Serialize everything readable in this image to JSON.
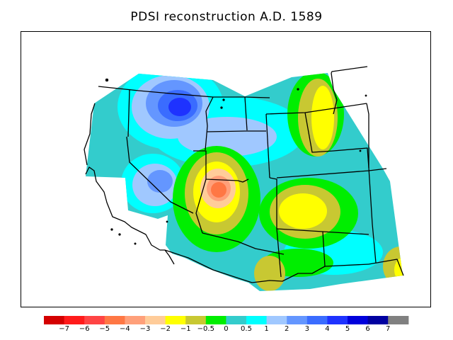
{
  "title": "PDSI reconstruction A.D. 1589",
  "legend": {
    "colors": [
      "#d40000",
      "#ff1a1a",
      "#ff4444",
      "#ff7744",
      "#ffa07a",
      "#ffcc99",
      "#ffff00",
      "#c8c832",
      "#00ee00",
      "#33cccc",
      "#00ffff",
      "#a0c8ff",
      "#6496ff",
      "#3a6cff",
      "#1e32ff",
      "#0000dc",
      "#0000a0",
      "#808080"
    ],
    "tick_labels": [
      "−7",
      "−6",
      "−5",
      "−4",
      "−3",
      "−2",
      "−1",
      "−0.5",
      "0",
      "0.5",
      "1",
      "2",
      "3",
      "4",
      "5",
      "6",
      "7"
    ]
  },
  "colors": {
    "teal": "#33cccc",
    "cyan": "#00ffff",
    "light_blue": "#a0c8ff",
    "mid_blue": "#6496ff",
    "blue": "#3a6cff",
    "deep_blue": "#1e32ff",
    "green": "#00ee00",
    "olive": "#c8c832",
    "yellow": "#ffff00",
    "peach": "#ffcc99",
    "salmon": "#ffa07a",
    "orange": "#ff7744"
  }
}
